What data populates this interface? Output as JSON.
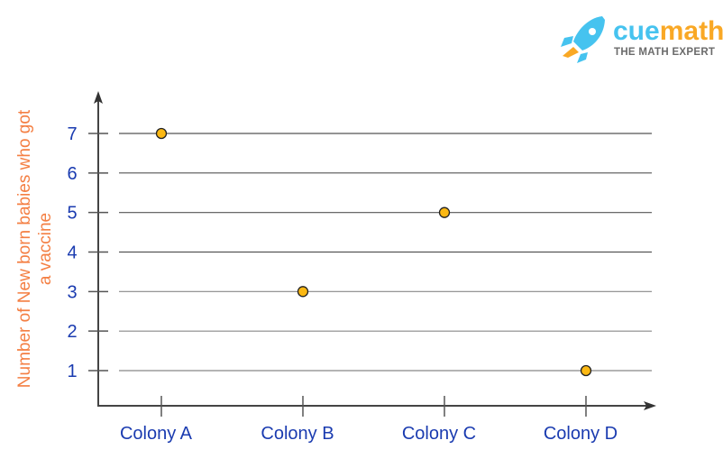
{
  "logo": {
    "brand_part1": "cue",
    "brand_part2": "math",
    "tagline": "THE MATH EXPERT",
    "color1": "#46c3ef",
    "color2": "#f9a825"
  },
  "chart_data": {
    "type": "scatter",
    "title": "",
    "xlabel": "",
    "ylabel_lines": [
      "Number of New born babies who got",
      "a vaccine"
    ],
    "categories": [
      "Colony A",
      "Colony B",
      "Colony C",
      "Colony D"
    ],
    "values": [
      7,
      3,
      5,
      1
    ],
    "yticks": [
      1,
      2,
      3,
      4,
      5,
      6,
      7
    ],
    "ylim": [
      0,
      7.8
    ],
    "grid": true,
    "colors": {
      "marker": "#fbb813",
      "axis_labels": "#1a3bb0",
      "ylabel": "#f47f43",
      "grid": "#555555"
    }
  }
}
